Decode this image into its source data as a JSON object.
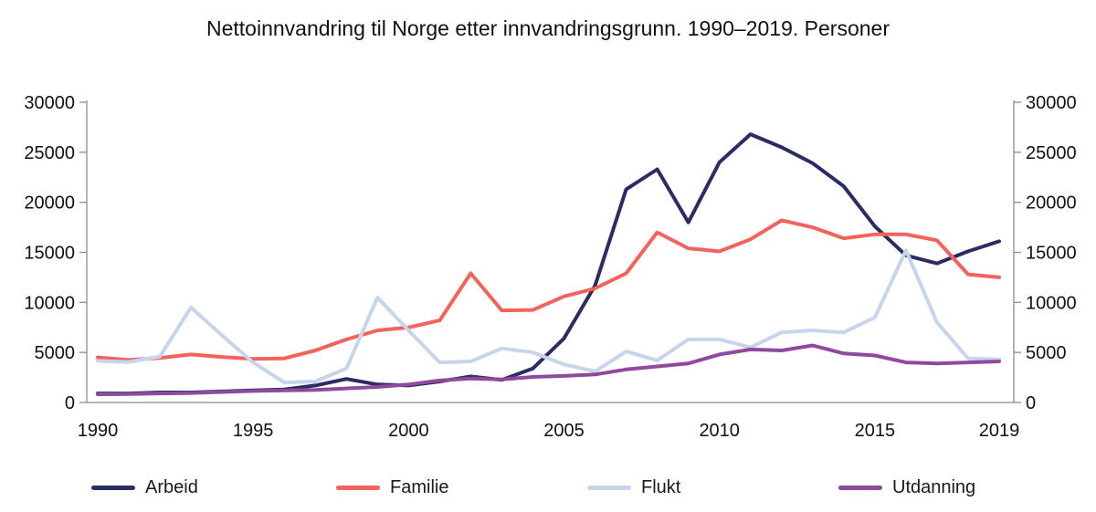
{
  "title": "Nettoinnvandring til Norge etter innvandringsgrunn. 1990–2019. Personer",
  "chart_data": {
    "type": "line",
    "title": "Nettoinnvandring til Norge etter innvandringsgrunn. 1990–2019. Personer",
    "x": [
      1990,
      1991,
      1992,
      1993,
      1994,
      1995,
      1996,
      1997,
      1998,
      1999,
      2000,
      2001,
      2002,
      2003,
      2004,
      2005,
      2006,
      2007,
      2008,
      2009,
      2010,
      2011,
      2012,
      2013,
      2014,
      2015,
      2016,
      2017,
      2018,
      2019
    ],
    "x_tick_labels": [
      "1990",
      "1995",
      "2000",
      "2005",
      "2010",
      "2015",
      "2019"
    ],
    "x_tick_years": [
      1990,
      1995,
      2000,
      2005,
      2010,
      2015,
      2019
    ],
    "y_tick_labels": [
      "0",
      "5000",
      "10000",
      "15000",
      "20000",
      "25000",
      "30000"
    ],
    "y_ticks": [
      0,
      5000,
      10000,
      15000,
      20000,
      25000,
      30000
    ],
    "ylim": [
      0,
      30000
    ],
    "grid": false,
    "legend_position": "bottom",
    "dual_y_axis": true,
    "axis_color": "#8c8c8c",
    "text_color": "#111111",
    "series": [
      {
        "name": "Arbeid",
        "color": "#2b2c66",
        "values": [
          900,
          900,
          1000,
          1000,
          1100,
          1200,
          1300,
          1700,
          2350,
          1800,
          1700,
          2100,
          2600,
          2250,
          3400,
          6400,
          11700,
          21300,
          23300,
          18000,
          24000,
          26800,
          25500,
          23900,
          21600,
          17600,
          14700,
          13900,
          15100,
          16100
        ]
      },
      {
        "name": "Familie",
        "color": "#f4625c",
        "values": [
          4500,
          4250,
          4450,
          4800,
          4550,
          4350,
          4400,
          5200,
          6300,
          7200,
          7500,
          8200,
          12900,
          9200,
          9250,
          10600,
          11400,
          12900,
          17000,
          15400,
          15100,
          16300,
          18200,
          17500,
          16400,
          16800,
          16800,
          16200,
          12800,
          12500
        ]
      },
      {
        "name": "Flukt",
        "color": "#c6d4ec",
        "values": [
          4150,
          4050,
          4600,
          9500,
          6700,
          4000,
          2000,
          2100,
          3400,
          10500,
          7200,
          4000,
          4100,
          5400,
          5000,
          3800,
          3100,
          5100,
          4200,
          6300,
          6300,
          5500,
          7000,
          7200,
          7000,
          8500,
          15200,
          8000,
          4400,
          4300
        ]
      },
      {
        "name": "Utdanning",
        "color": "#8f4a9e",
        "values": [
          820,
          850,
          900,
          950,
          1050,
          1150,
          1200,
          1250,
          1400,
          1550,
          1800,
          2200,
          2400,
          2300,
          2550,
          2650,
          2800,
          3300,
          3600,
          3900,
          4800,
          5300,
          5200,
          5700,
          4900,
          4700,
          4000,
          3900,
          4000,
          4100
        ]
      }
    ]
  }
}
